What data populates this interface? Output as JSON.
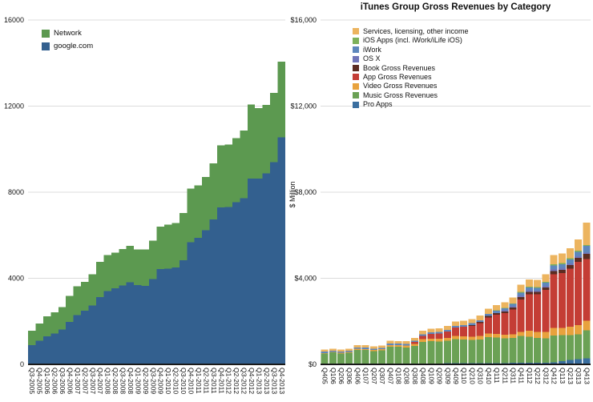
{
  "chart_data": [
    {
      "type": "bar",
      "stacked": true,
      "title": "",
      "ylabel": "",
      "ylim": [
        0,
        16000
      ],
      "grid": true,
      "legend_position": "top-left-inside",
      "y_ticks": [
        {
          "value": 0,
          "label": "0"
        },
        {
          "value": 4000,
          "label": "4000"
        },
        {
          "value": 8000,
          "label": "8000"
        },
        {
          "value": 12000,
          "label": "12000"
        },
        {
          "value": 16000,
          "label": "16000"
        }
      ],
      "categories": [
        "Q3-2005",
        "Q4-2005",
        "Q1-2006",
        "Q2-2006",
        "Q3-2006",
        "Q4-2006",
        "Q1-2007",
        "Q2-2007",
        "Q3-2007",
        "Q4-2007",
        "Q1-2008",
        "Q2-2008",
        "Q3-2008",
        "Q4-2008",
        "Q1-2009",
        "Q2-2009",
        "Q3-2009",
        "Q4-2009",
        "Q1-2010",
        "Q2-2010",
        "Q3-2010",
        "Q4-2010",
        "Q1-2011",
        "Q2-2011",
        "Q3-2011",
        "Q4-2011",
        "Q1-2012",
        "Q2-2012",
        "Q3-2012",
        "Q4-2012",
        "Q1-2013",
        "Q2-2013",
        "Q3-2013",
        "Q4-2013"
      ],
      "series": [
        {
          "name": "google.com",
          "color": "#33608F",
          "values": [
            885,
            1098,
            1297,
            1430,
            1626,
            1980,
            2282,
            2486,
            2731,
            3121,
            3400,
            3530,
            3672,
            3810,
            3693,
            3653,
            3955,
            4420,
            4444,
            4500,
            4830,
            5670,
            5880,
            6230,
            6740,
            7290,
            7310,
            7540,
            7730,
            8640,
            8640,
            8870,
            9390,
            10550
          ]
        },
        {
          "name": "Network",
          "color": "#5C9950",
          "values": [
            675,
            799,
            928,
            997,
            1036,
            1200,
            1349,
            1351,
            1450,
            1637,
            1686,
            1660,
            1680,
            1693,
            1642,
            1680,
            1800,
            1986,
            2042,
            2063,
            2199,
            2500,
            2430,
            2484,
            2595,
            2880,
            2910,
            2980,
            3130,
            3440,
            3260,
            3190,
            3220,
            3520
          ]
        }
      ],
      "legend_items": [
        {
          "label": "Network",
          "color": "#5C9950"
        },
        {
          "label": "google.com",
          "color": "#33608F"
        }
      ]
    },
    {
      "type": "bar",
      "stacked": true,
      "title": "iTunes Group Gross Revenues by Category",
      "ylabel": "$ Million",
      "ylim": [
        0,
        16000
      ],
      "grid": true,
      "legend_position": "top-inside",
      "y_ticks": [
        {
          "value": 0,
          "label": "$0"
        },
        {
          "value": 4000,
          "label": "$4,000"
        },
        {
          "value": 8000,
          "label": "$8,000"
        },
        {
          "value": 12000,
          "label": "$12,000"
        },
        {
          "value": 16000,
          "label": "$16,000"
        }
      ],
      "categories": [
        "Q405",
        "Q106",
        "Q206",
        "Q306",
        "Q406",
        "Q107",
        "Q207",
        "Q307",
        "Q407",
        "Q108",
        "Q208",
        "Q308",
        "Q408",
        "Q109",
        "Q209",
        "Q309",
        "Q409",
        "Q110",
        "Q210",
        "Q310",
        "Q410",
        "Q111",
        "Q211",
        "Q311",
        "Q411",
        "Q112",
        "Q212",
        "Q312",
        "Q412",
        "Q113",
        "Q213",
        "Q313",
        "Q413"
      ],
      "series": [
        {
          "name": "Pro Apps",
          "color": "#3A6E9F",
          "values": [
            30,
            30,
            30,
            30,
            35,
            35,
            35,
            35,
            40,
            40,
            40,
            40,
            45,
            45,
            45,
            50,
            55,
            55,
            55,
            60,
            65,
            65,
            65,
            70,
            75,
            75,
            75,
            80,
            90,
            150,
            200,
            250,
            280
          ]
        },
        {
          "name": "Music Gross Revenues",
          "color": "#6BA155",
          "values": [
            480,
            520,
            480,
            510,
            640,
            630,
            580,
            610,
            780,
            770,
            750,
            820,
            1000,
            1030,
            1010,
            1040,
            1120,
            1100,
            1080,
            1100,
            1200,
            1180,
            1150,
            1150,
            1250,
            1200,
            1150,
            1130,
            1250,
            1200,
            1150,
            1150,
            1300
          ]
        },
        {
          "name": "Video Gross Revenues",
          "color": "#E8A23D",
          "values": [
            20,
            25,
            30,
            35,
            45,
            50,
            55,
            60,
            80,
            85,
            90,
            95,
            120,
            125,
            130,
            135,
            150,
            150,
            150,
            155,
            170,
            170,
            170,
            175,
            190,
            280,
            280,
            300,
            350,
            350,
            400,
            420,
            450
          ]
        },
        {
          "name": "App Gross Revenues",
          "color": "#C43D35",
          "values": [
            0,
            0,
            0,
            0,
            0,
            0,
            0,
            0,
            0,
            0,
            0,
            80,
            160,
            210,
            250,
            300,
            380,
            440,
            500,
            600,
            750,
            900,
            1000,
            1150,
            1500,
            1700,
            1750,
            1950,
            2500,
            2550,
            2700,
            2950,
            2860
          ]
        },
        {
          "name": "Book Gross Revenues",
          "color": "#5C2C21",
          "values": [
            0,
            0,
            0,
            0,
            0,
            0,
            0,
            0,
            0,
            0,
            0,
            0,
            0,
            0,
            0,
            0,
            0,
            0,
            40,
            50,
            60,
            70,
            80,
            90,
            110,
            110,
            110,
            120,
            140,
            150,
            160,
            170,
            250
          ]
        },
        {
          "name": "OS X",
          "color": "#7175B8",
          "values": [
            0,
            0,
            0,
            0,
            0,
            0,
            0,
            0,
            0,
            0,
            0,
            0,
            0,
            0,
            0,
            0,
            0,
            0,
            0,
            0,
            0,
            0,
            40,
            60,
            70,
            70,
            60,
            70,
            90,
            80,
            80,
            90,
            60
          ]
        },
        {
          "name": "iWork",
          "color": "#5E87BC",
          "values": [
            60,
            60,
            55,
            55,
            60,
            60,
            55,
            60,
            70,
            65,
            65,
            65,
            75,
            75,
            75,
            80,
            85,
            85,
            85,
            90,
            95,
            100,
            100,
            110,
            130,
            130,
            130,
            140,
            170,
            170,
            180,
            190,
            300
          ]
        },
        {
          "name": "iOS Apps (incl. iWork/iLife iOS)",
          "color": "#7DB15A",
          "values": [
            0,
            0,
            0,
            0,
            0,
            0,
            0,
            0,
            0,
            0,
            0,
            0,
            0,
            0,
            0,
            0,
            0,
            0,
            0,
            0,
            0,
            20,
            25,
            30,
            40,
            40,
            40,
            45,
            55,
            50,
            55,
            60,
            50
          ]
        },
        {
          "name": "Services, licensing, other income",
          "color": "#ECB45F",
          "values": [
            90,
            95,
            90,
            95,
            110,
            110,
            105,
            110,
            130,
            125,
            125,
            130,
            160,
            165,
            165,
            175,
            195,
            195,
            195,
            210,
            240,
            250,
            255,
            270,
            330,
            340,
            330,
            360,
            440,
            450,
            470,
            520,
            1030
          ]
        }
      ],
      "legend_items": [
        {
          "label": "Services, licensing, other income",
          "color": "#ECB45F"
        },
        {
          "label": "iOS Apps (incl. iWork/iLife iOS)",
          "color": "#7DB15A"
        },
        {
          "label": "iWork",
          "color": "#5E87BC"
        },
        {
          "label": "OS X",
          "color": "#7175B8"
        },
        {
          "label": "Book Gross Revenues",
          "color": "#5C2C21"
        },
        {
          "label": "App Gross Revenues",
          "color": "#C43D35"
        },
        {
          "label": "Video Gross Revenues",
          "color": "#E8A23D"
        },
        {
          "label": "Music Gross Revenues",
          "color": "#6BA155"
        },
        {
          "label": "Pro Apps",
          "color": "#3A6E9F"
        }
      ]
    }
  ],
  "style": {
    "grid_color": "#DCDCDC",
    "axis_color": "#1A1A1A",
    "text_color": "#111111",
    "background": "#FFFFFF"
  }
}
